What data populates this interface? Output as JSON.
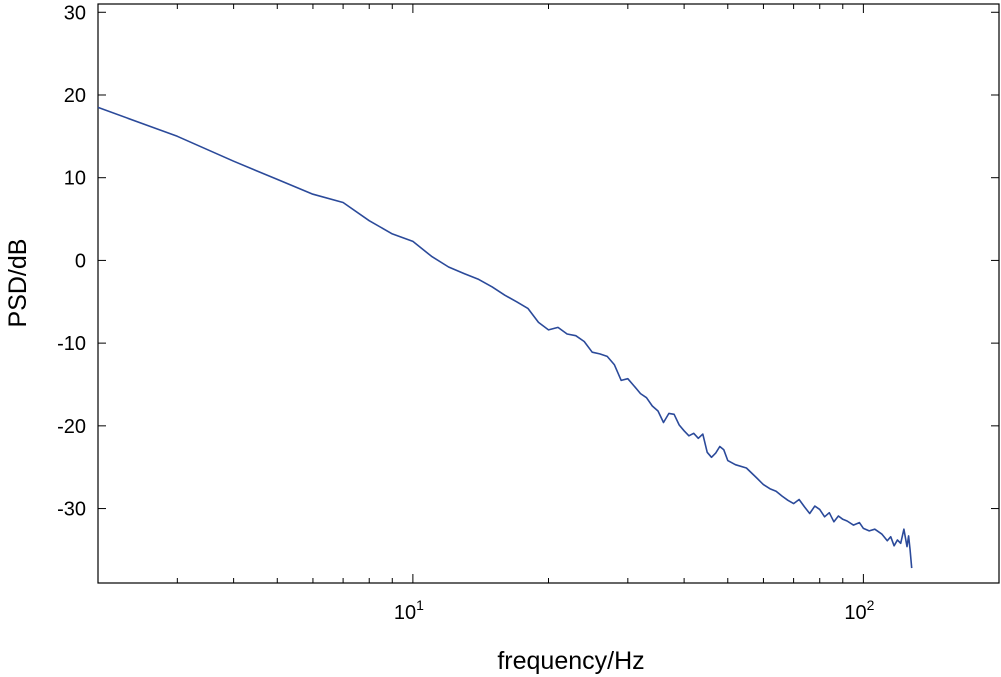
{
  "chart_data": {
    "type": "line",
    "xlabel": "frequency/Hz",
    "ylabel": "PSD/dB",
    "xscale": "log",
    "xlim": [
      2,
      200
    ],
    "ylim": [
      -39,
      31
    ],
    "grid": false,
    "xticks": [
      {
        "value": 10,
        "base": "10",
        "exp": "1"
      },
      {
        "value": 100,
        "base": "10",
        "exp": "2"
      }
    ],
    "yticks": [
      30,
      20,
      10,
      0,
      -10,
      -20,
      -30
    ],
    "series": [
      {
        "color": "#2b4a9a",
        "x": [
          2.0,
          3.0,
          4.0,
          5.0,
          6.0,
          7.0,
          8.0,
          9.0,
          10.0,
          11.0,
          12.0,
          13.0,
          14.0,
          15.0,
          16.0,
          17.0,
          18.0,
          19.0,
          20.0,
          21.0,
          22.0,
          23.0,
          24.0,
          25.0,
          26.0,
          27.0,
          28.0,
          29.0,
          30.0,
          31.0,
          32.0,
          33.0,
          34.0,
          35.0,
          36.0,
          37.0,
          38.0,
          39.0,
          40.0,
          41.0,
          42.0,
          43.0,
          44.0,
          45.0,
          46.0,
          47.0,
          48.0,
          49.0,
          50.0,
          52.0,
          55.0,
          58.0,
          60.0,
          62.0,
          64.0,
          66.0,
          68.0,
          70.0,
          72.0,
          74.0,
          76.0,
          78.0,
          80.0,
          82.0,
          84.0,
          86.0,
          88.0,
          90.0,
          92.0,
          95.0,
          98.0,
          100.0,
          103.0,
          106.0,
          110.0,
          113.0,
          115.0,
          117.0,
          119.0,
          121.0,
          123.0,
          125.0,
          126.0,
          127.0,
          128.0
        ],
        "y": [
          18.5,
          15.0,
          12.0,
          9.8,
          8.0,
          7.0,
          4.8,
          3.2,
          2.3,
          0.5,
          -0.8,
          -1.6,
          -2.3,
          -3.2,
          -4.2,
          -5.0,
          -5.8,
          -7.5,
          -8.4,
          -8.1,
          -8.9,
          -9.1,
          -9.8,
          -11.1,
          -11.3,
          -11.6,
          -12.6,
          -14.5,
          -14.3,
          -15.2,
          -16.1,
          -16.6,
          -17.6,
          -18.2,
          -19.6,
          -18.5,
          -18.6,
          -19.9,
          -20.6,
          -21.2,
          -20.9,
          -21.5,
          -21.0,
          -23.2,
          -23.8,
          -23.3,
          -22.5,
          -22.9,
          -24.2,
          -24.7,
          -25.1,
          -26.3,
          -27.1,
          -27.6,
          -27.9,
          -28.5,
          -29.0,
          -29.4,
          -28.9,
          -29.8,
          -30.6,
          -29.7,
          -30.1,
          -31.0,
          -30.5,
          -31.6,
          -30.9,
          -31.3,
          -31.5,
          -32.0,
          -31.7,
          -32.4,
          -32.7,
          -32.5,
          -33.1,
          -33.9,
          -33.4,
          -34.5,
          -33.8,
          -34.2,
          -32.5,
          -34.6,
          -33.3,
          -35.0,
          -37.2
        ]
      }
    ]
  }
}
